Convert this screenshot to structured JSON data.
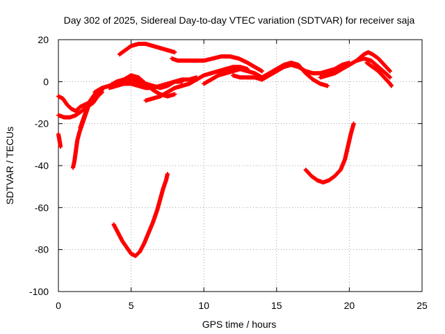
{
  "chart_data": {
    "type": "scatter",
    "title": "Day 302 of 2025, Sidereal Day-to-day VTEC variation (SDTVAR) for receiver saja",
    "xlabel": "GPS time / hours",
    "ylabel": "SDTVAR / TECUs",
    "xlim": [
      0,
      25
    ],
    "ylim": [
      -100,
      20
    ],
    "x_ticks": [
      "0",
      "5",
      "10",
      "15",
      "20",
      "25"
    ],
    "y_ticks": [
      "20",
      "0",
      "-20",
      "-40",
      "-60",
      "-80",
      "-100"
    ],
    "grid": true,
    "legend": "none",
    "marker": "+",
    "color": "#ff0000",
    "series": [
      {
        "points": [
          [
            0,
            -7
          ],
          [
            0.3,
            -8
          ],
          [
            0.6,
            -11
          ],
          [
            0.9,
            -13
          ],
          [
            1.2,
            -14
          ],
          [
            1.5,
            -12
          ],
          [
            1.8,
            -11
          ],
          [
            2.1,
            -10
          ],
          [
            2.4,
            -8
          ],
          [
            2.7,
            -6
          ],
          [
            3.0,
            -4
          ]
        ]
      },
      {
        "points": [
          [
            0,
            -16
          ],
          [
            0.4,
            -17
          ],
          [
            0.8,
            -17
          ],
          [
            1.2,
            -16
          ],
          [
            1.6,
            -14
          ],
          [
            2.0,
            -12
          ],
          [
            2.4,
            -10
          ],
          [
            2.7,
            -7
          ],
          [
            3.0,
            -5
          ]
        ]
      },
      {
        "points": [
          [
            0,
            -25
          ],
          [
            0.05,
            -27
          ],
          [
            0.1,
            -29
          ],
          [
            0.15,
            -31
          ]
        ]
      },
      {
        "points": [
          [
            1.0,
            -41
          ],
          [
            1.1,
            -38
          ],
          [
            1.2,
            -33
          ],
          [
            1.3,
            -28
          ],
          [
            1.45,
            -24
          ],
          [
            1.6,
            -21
          ],
          [
            1.8,
            -17
          ],
          [
            2.0,
            -13
          ],
          [
            2.2,
            -9
          ],
          [
            2.5,
            -6
          ],
          [
            2.8,
            -4
          ]
        ]
      },
      {
        "points": [
          [
            1.5,
            -22
          ],
          [
            1.7,
            -18
          ],
          [
            1.9,
            -14
          ],
          [
            2.1,
            -10
          ],
          [
            2.4,
            -7
          ]
        ]
      },
      {
        "points": [
          [
            2.5,
            -5
          ],
          [
            3.0,
            -3
          ],
          [
            3.5,
            -2
          ],
          [
            4.0,
            -1
          ],
          [
            4.5,
            0
          ],
          [
            5.0,
            1
          ],
          [
            5.5,
            0
          ],
          [
            6.0,
            -1
          ],
          [
            6.5,
            -2
          ],
          [
            7.0,
            -3
          ],
          [
            7.5,
            -2
          ],
          [
            8.0,
            0
          ],
          [
            8.5,
            1
          ],
          [
            9.0,
            1
          ],
          [
            9.5,
            2
          ]
        ]
      },
      {
        "points": [
          [
            3.5,
            -3
          ],
          [
            4.0,
            -2
          ],
          [
            4.5,
            -1
          ],
          [
            5.0,
            -1
          ],
          [
            5.5,
            -2
          ],
          [
            6.0,
            -3
          ],
          [
            6.5,
            -3
          ],
          [
            7.0,
            -2
          ],
          [
            7.5,
            -1
          ],
          [
            8.0,
            0
          ],
          [
            8.5,
            0
          ]
        ]
      },
      {
        "points": [
          [
            3.5,
            -2
          ],
          [
            4.0,
            0
          ],
          [
            4.5,
            1
          ],
          [
            5.0,
            3
          ],
          [
            5.5,
            2
          ],
          [
            6.0,
            -1
          ],
          [
            6.5,
            -4
          ],
          [
            7.0,
            -6
          ],
          [
            7.5,
            -7
          ],
          [
            8.0,
            -6
          ]
        ]
      },
      {
        "points": [
          [
            6.0,
            -9
          ],
          [
            6.5,
            -8
          ],
          [
            7.0,
            -7
          ],
          [
            7.5,
            -5
          ],
          [
            8.0,
            -3
          ],
          [
            8.5,
            -2
          ],
          [
            9.0,
            -1
          ],
          [
            9.5,
            1
          ],
          [
            10.0,
            3
          ],
          [
            10.5,
            4
          ],
          [
            11.0,
            5
          ],
          [
            11.5,
            6
          ],
          [
            12.0,
            7
          ],
          [
            12.5,
            7
          ],
          [
            13.0,
            6
          ]
        ]
      },
      {
        "points": [
          [
            4.2,
            13
          ],
          [
            4.6,
            15
          ],
          [
            5.0,
            17
          ],
          [
            5.5,
            18
          ],
          [
            6.0,
            18
          ],
          [
            6.5,
            17
          ],
          [
            7.0,
            16
          ],
          [
            7.5,
            15
          ],
          [
            8.0,
            14
          ]
        ]
      },
      {
        "points": [
          [
            7.8,
            11
          ],
          [
            8.2,
            10
          ],
          [
            8.8,
            10
          ],
          [
            9.4,
            10
          ],
          [
            10.0,
            10
          ],
          [
            10.6,
            11
          ],
          [
            11.2,
            12
          ],
          [
            11.8,
            12
          ],
          [
            12.4,
            11
          ],
          [
            13.0,
            9
          ],
          [
            13.5,
            7
          ],
          [
            14.0,
            5
          ]
        ]
      },
      {
        "points": [
          [
            12.0,
            3
          ],
          [
            12.5,
            2
          ],
          [
            13.0,
            2
          ],
          [
            13.5,
            2
          ],
          [
            14.0,
            1
          ],
          [
            14.5,
            3
          ],
          [
            15.0,
            5
          ],
          [
            15.5,
            7
          ],
          [
            16.0,
            8
          ],
          [
            16.5,
            7
          ],
          [
            17.0,
            5
          ],
          [
            17.5,
            4
          ],
          [
            18.0,
            4
          ],
          [
            18.5,
            5
          ],
          [
            19.0,
            6
          ],
          [
            19.5,
            8
          ],
          [
            20.0,
            9
          ]
        ]
      },
      {
        "points": [
          [
            10.0,
            -1
          ],
          [
            10.5,
            1
          ],
          [
            11.0,
            3
          ],
          [
            11.5,
            4
          ],
          [
            12.0,
            5
          ],
          [
            12.5,
            6
          ],
          [
            13.0,
            5
          ],
          [
            13.5,
            4
          ],
          [
            14.0,
            2
          ],
          [
            14.5,
            4
          ],
          [
            15.0,
            6
          ],
          [
            15.5,
            8
          ],
          [
            16.0,
            9
          ],
          [
            16.5,
            8
          ],
          [
            17.0,
            4
          ],
          [
            17.5,
            1
          ],
          [
            18.0,
            -1
          ],
          [
            18.5,
            -2
          ]
        ]
      },
      {
        "points": [
          [
            17.0,
            -42
          ],
          [
            17.4,
            -45
          ],
          [
            17.8,
            -47
          ],
          [
            18.2,
            -48
          ],
          [
            18.6,
            -47
          ],
          [
            19.0,
            -45
          ],
          [
            19.4,
            -42
          ],
          [
            19.7,
            -37
          ],
          [
            19.9,
            -31
          ],
          [
            20.1,
            -25
          ],
          [
            20.3,
            -20
          ]
        ]
      },
      {
        "points": [
          [
            18.0,
            2
          ],
          [
            18.5,
            3
          ],
          [
            19.0,
            4
          ],
          [
            19.5,
            6
          ],
          [
            20.0,
            8
          ],
          [
            20.5,
            10
          ],
          [
            21.0,
            13
          ],
          [
            21.3,
            14
          ],
          [
            21.6,
            13
          ],
          [
            22.0,
            11
          ],
          [
            22.4,
            8
          ],
          [
            22.8,
            5
          ]
        ]
      },
      {
        "points": [
          [
            20.5,
            10
          ],
          [
            21.0,
            11
          ],
          [
            21.5,
            10
          ],
          [
            22.0,
            7
          ],
          [
            22.5,
            4
          ],
          [
            22.8,
            2
          ]
        ]
      },
      {
        "points": [
          [
            21.2,
            9
          ],
          [
            21.6,
            7
          ],
          [
            22.0,
            5
          ],
          [
            22.4,
            2
          ],
          [
            22.8,
            -1
          ],
          [
            22.9,
            -2
          ]
        ]
      },
      {
        "points": [
          [
            3.8,
            -68
          ],
          [
            4.1,
            -72
          ],
          [
            4.4,
            -76
          ],
          [
            4.7,
            -79
          ],
          [
            5.0,
            -82
          ],
          [
            5.3,
            -83
          ],
          [
            5.6,
            -81
          ],
          [
            5.9,
            -77
          ],
          [
            6.2,
            -72
          ],
          [
            6.5,
            -67
          ],
          [
            6.8,
            -61
          ],
          [
            7.0,
            -56
          ],
          [
            7.2,
            -51
          ],
          [
            7.4,
            -47
          ],
          [
            7.5,
            -44
          ]
        ]
      }
    ]
  }
}
